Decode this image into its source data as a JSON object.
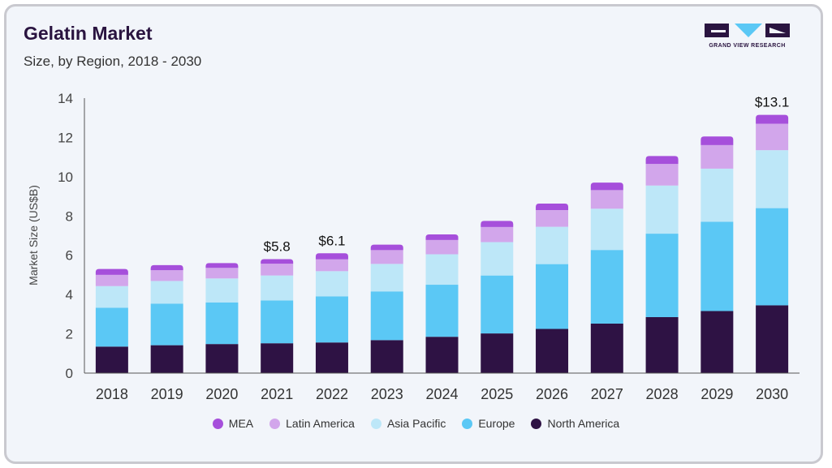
{
  "header": {
    "title": "Gelatin Market",
    "subtitle": "Size, by Region, 2018 - 2030"
  },
  "logo": {
    "text": "GRAND VIEW RESEARCH",
    "color": "#2a1440",
    "accent": "#5bc8f5"
  },
  "chart_data": {
    "type": "bar",
    "stacked": true,
    "title": "",
    "xlabel": "",
    "ylabel": "Market Size (US$B)",
    "ylim": [
      0,
      14
    ],
    "yticks": [
      0,
      2,
      4,
      6,
      8,
      10,
      12,
      14
    ],
    "grid": false,
    "legend_position": "bottom",
    "categories": [
      "2018",
      "2019",
      "2020",
      "2021",
      "2022",
      "2023",
      "2024",
      "2025",
      "2026",
      "2027",
      "2028",
      "2029",
      "2030"
    ],
    "series": [
      {
        "name": "North America",
        "color": "#2e1244",
        "values": [
          1.35,
          1.42,
          1.48,
          1.52,
          1.56,
          1.68,
          1.85,
          2.02,
          2.25,
          2.52,
          2.85,
          3.16,
          3.45
        ]
      },
      {
        "name": "Europe",
        "color": "#5bc8f5",
        "values": [
          1.98,
          2.12,
          2.12,
          2.18,
          2.35,
          2.48,
          2.65,
          2.95,
          3.3,
          3.75,
          4.25,
          4.55,
          4.95
        ]
      },
      {
        "name": "Asia Pacific",
        "color": "#bde7f8",
        "values": [
          1.1,
          1.15,
          1.22,
          1.27,
          1.28,
          1.4,
          1.55,
          1.7,
          1.9,
          2.1,
          2.45,
          2.7,
          2.95
        ]
      },
      {
        "name": "Latin America",
        "color": "#d2a6eb",
        "values": [
          0.57,
          0.55,
          0.54,
          0.6,
          0.6,
          0.7,
          0.73,
          0.77,
          0.85,
          0.95,
          1.1,
          1.2,
          1.35
        ]
      },
      {
        "name": "MEA",
        "color": "#a64fdb",
        "values": [
          0.3,
          0.26,
          0.24,
          0.23,
          0.31,
          0.28,
          0.28,
          0.31,
          0.33,
          0.38,
          0.4,
          0.44,
          0.45
        ]
      }
    ],
    "annotations": [
      {
        "category": "2021",
        "label": "$5.8"
      },
      {
        "category": "2022",
        "label": "$6.1"
      },
      {
        "category": "2030",
        "label": "$13.1"
      }
    ],
    "legend_order": [
      "MEA",
      "Latin America",
      "Asia Pacific",
      "Europe",
      "North America"
    ]
  }
}
